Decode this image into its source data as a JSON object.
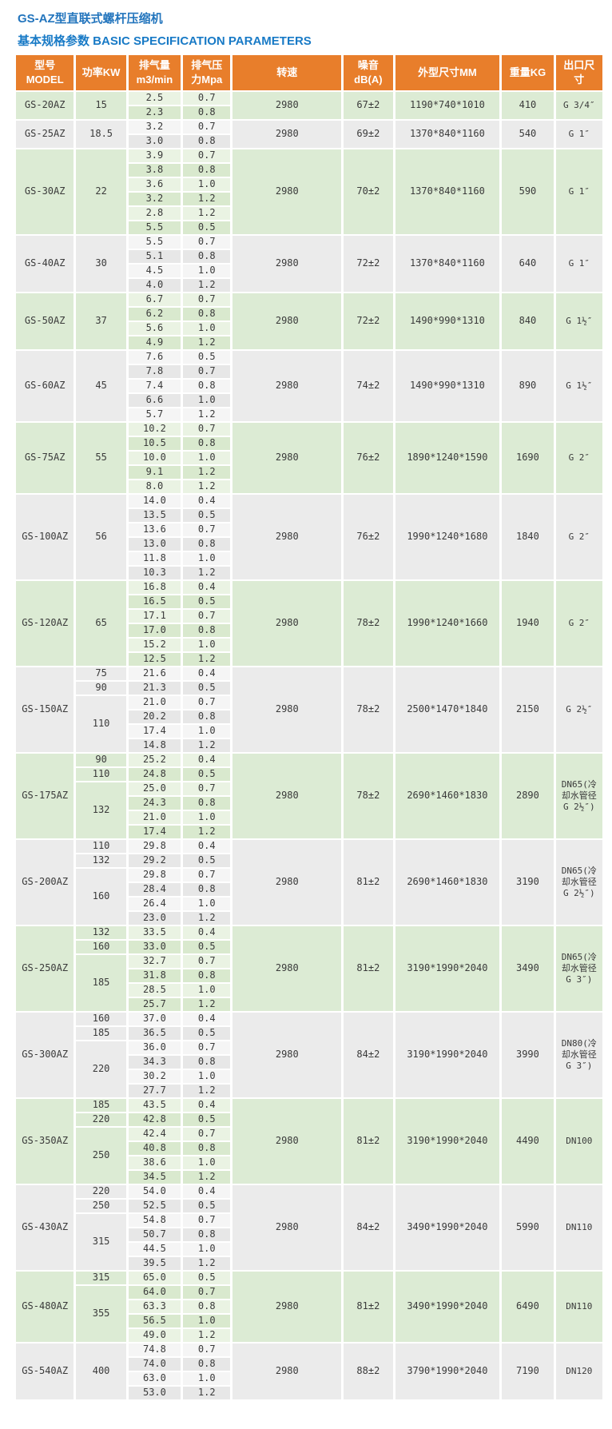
{
  "page": {
    "title": "GS-AZ型直联式螺杆压缩机",
    "subtitle": "基本规格参数 BASIC SPECIFICATION PARAMETERS"
  },
  "colors": {
    "header_bg": "#e87e2b",
    "header_text": "#ffffff",
    "title_text": "#2375bd",
    "subtitle_text": "#187ac6",
    "block_green": "#dcebd4",
    "block_green_light": "#eaf3e3",
    "block_green_dark": "#d9e9ce",
    "block_gray": "#ebebeb",
    "block_gray_light": "#f5f5f5",
    "block_gray_dark": "#e7e7e7",
    "cell_text": "#3a3a3a"
  },
  "table": {
    "headers": [
      {
        "key": "model",
        "lines": [
          "型号",
          "MODEL"
        ]
      },
      {
        "key": "power",
        "lines": [
          "功率KW"
        ]
      },
      {
        "key": "flow",
        "lines": [
          "排气量",
          "m3/min"
        ]
      },
      {
        "key": "pressure",
        "lines": [
          "排气压",
          "力Mpa"
        ]
      },
      {
        "key": "speed",
        "lines": [
          "转速"
        ]
      },
      {
        "key": "noise",
        "lines": [
          "噪音",
          "dB(A)"
        ]
      },
      {
        "key": "dimensions",
        "lines": [
          "外型尺寸MM"
        ]
      },
      {
        "key": "weight",
        "lines": [
          "重量KG"
        ]
      },
      {
        "key": "outlet",
        "lines": [
          "出口尺",
          "寸"
        ]
      }
    ],
    "blocks": [
      {
        "model": "GS-20AZ",
        "tone": "green",
        "power_groups": [
          {
            "power": "15",
            "rows": 2
          }
        ],
        "rows": [
          [
            "2.5",
            "0.7"
          ],
          [
            "2.3",
            "0.8"
          ]
        ],
        "speed": "2980",
        "noise": "67±2",
        "dimensions": "1190*740*1010",
        "weight": "410",
        "outlet": "G 3/4″"
      },
      {
        "model": "GS-25AZ",
        "tone": "gray",
        "power_groups": [
          {
            "power": "18.5",
            "rows": 2
          }
        ],
        "rows": [
          [
            "3.2",
            "0.7"
          ],
          [
            "3.0",
            "0.8"
          ]
        ],
        "speed": "2980",
        "noise": "69±2",
        "dimensions": "1370*840*1160",
        "weight": "540",
        "outlet": "G 1″"
      },
      {
        "model": "GS-30AZ",
        "tone": "green",
        "power_groups": [
          {
            "power": "22",
            "rows": 6
          }
        ],
        "rows": [
          [
            "3.9",
            "0.7"
          ],
          [
            "3.8",
            "0.8"
          ],
          [
            "3.6",
            "1.0"
          ],
          [
            "3.2",
            "1.2"
          ],
          [
            "2.8",
            "1.2"
          ],
          [
            "5.5",
            "0.5"
          ]
        ],
        "speed": "2980",
        "noise": "70±2",
        "dimensions": "1370*840*1160",
        "weight": "590",
        "outlet": "G 1″"
      },
      {
        "model": "GS-40AZ",
        "tone": "gray",
        "power_groups": [
          {
            "power": "30",
            "rows": 4
          }
        ],
        "rows": [
          [
            "5.5",
            "0.7"
          ],
          [
            "5.1",
            "0.8"
          ],
          [
            "4.5",
            "1.0"
          ],
          [
            "4.0",
            "1.2"
          ]
        ],
        "speed": "2980",
        "noise": "72±2",
        "dimensions": "1370*840*1160",
        "weight": "640",
        "outlet": "G 1″"
      },
      {
        "model": "GS-50AZ",
        "tone": "green",
        "power_groups": [
          {
            "power": "37",
            "rows": 4
          }
        ],
        "rows": [
          [
            "6.7",
            "0.7"
          ],
          [
            "6.2",
            "0.8"
          ],
          [
            "5.6",
            "1.0"
          ],
          [
            "4.9",
            "1.2"
          ]
        ],
        "speed": "2980",
        "noise": "72±2",
        "dimensions": "1490*990*1310",
        "weight": "840",
        "outlet": "G 1½″"
      },
      {
        "model": "GS-60AZ",
        "tone": "gray",
        "power_groups": [
          {
            "power": "45",
            "rows": 5
          }
        ],
        "rows": [
          [
            "7.6",
            "0.5"
          ],
          [
            "7.8",
            "0.7"
          ],
          [
            "7.4",
            "0.8"
          ],
          [
            "6.6",
            "1.0"
          ],
          [
            "5.7",
            "1.2"
          ]
        ],
        "speed": "2980",
        "noise": "74±2",
        "dimensions": "1490*990*1310",
        "weight": "890",
        "outlet": "G 1½″"
      },
      {
        "model": "GS-75AZ",
        "tone": "green",
        "power_groups": [
          {
            "power": "55",
            "rows": 5
          }
        ],
        "rows": [
          [
            "10.2",
            "0.7"
          ],
          [
            "10.5",
            "0.8"
          ],
          [
            "10.0",
            "1.0"
          ],
          [
            "9.1",
            "1.2"
          ],
          [
            "8.0",
            "1.2"
          ]
        ],
        "speed": "2980",
        "noise": "76±2",
        "dimensions": "1890*1240*1590",
        "weight": "1690",
        "outlet": "G 2″"
      },
      {
        "model": "GS-100AZ",
        "tone": "gray",
        "power_groups": [
          {
            "power": "56",
            "rows": 6
          }
        ],
        "rows": [
          [
            "14.0",
            "0.4"
          ],
          [
            "13.5",
            "0.5"
          ],
          [
            "13.6",
            "0.7"
          ],
          [
            "13.0",
            "0.8"
          ],
          [
            "11.8",
            "1.0"
          ],
          [
            "10.3",
            "1.2"
          ]
        ],
        "speed": "2980",
        "noise": "76±2",
        "dimensions": "1990*1240*1680",
        "weight": "1840",
        "outlet": "G 2″"
      },
      {
        "model": "GS-120AZ",
        "tone": "green",
        "power_groups": [
          {
            "power": "65",
            "rows": 6
          }
        ],
        "rows": [
          [
            "16.8",
            "0.4"
          ],
          [
            "16.5",
            "0.5"
          ],
          [
            "17.1",
            "0.7"
          ],
          [
            "17.0",
            "0.8"
          ],
          [
            "15.2",
            "1.0"
          ],
          [
            "12.5",
            "1.2"
          ]
        ],
        "speed": "2980",
        "noise": "78±2",
        "dimensions": "1990*1240*1660",
        "weight": "1940",
        "outlet": "G 2″"
      },
      {
        "model": "GS-150AZ",
        "tone": "gray",
        "power_groups": [
          {
            "power": "75",
            "rows": 1
          },
          {
            "power": "90",
            "rows": 1
          },
          {
            "power": "110",
            "rows": 4
          }
        ],
        "rows": [
          [
            "21.6",
            "0.4"
          ],
          [
            "21.3",
            "0.5"
          ],
          [
            "21.0",
            "0.7"
          ],
          [
            "20.2",
            "0.8"
          ],
          [
            "17.4",
            "1.0"
          ],
          [
            "14.8",
            "1.2"
          ]
        ],
        "speed": "2980",
        "noise": "78±2",
        "dimensions": "2500*1470*1840",
        "weight": "2150",
        "outlet": "G 2½″"
      },
      {
        "model": "GS-175AZ",
        "tone": "green",
        "power_groups": [
          {
            "power": "90",
            "rows": 1
          },
          {
            "power": "110",
            "rows": 1
          },
          {
            "power": "132",
            "rows": 4
          }
        ],
        "rows": [
          [
            "25.2",
            "0.4"
          ],
          [
            "24.8",
            "0.5"
          ],
          [
            "25.0",
            "0.7"
          ],
          [
            "24.3",
            "0.8"
          ],
          [
            "21.0",
            "1.0"
          ],
          [
            "17.4",
            "1.2"
          ]
        ],
        "speed": "2980",
        "noise": "78±2",
        "dimensions": "2690*1460*1830",
        "weight": "2890",
        "outlet": "DN65(冷却水管径 G 2½″)"
      },
      {
        "model": "GS-200AZ",
        "tone": "gray",
        "power_groups": [
          {
            "power": "110",
            "rows": 1
          },
          {
            "power": "132",
            "rows": 1
          },
          {
            "power": "160",
            "rows": 4
          }
        ],
        "rows": [
          [
            "29.8",
            "0.4"
          ],
          [
            "29.2",
            "0.5"
          ],
          [
            "29.8",
            "0.7"
          ],
          [
            "28.4",
            "0.8"
          ],
          [
            "26.4",
            "1.0"
          ],
          [
            "23.0",
            "1.2"
          ]
        ],
        "speed": "2980",
        "noise": "81±2",
        "dimensions": "2690*1460*1830",
        "weight": "3190",
        "outlet": "DN65(冷却水管径 G 2½″)"
      },
      {
        "model": "GS-250AZ",
        "tone": "green",
        "power_groups": [
          {
            "power": "132",
            "rows": 1
          },
          {
            "power": "160",
            "rows": 1
          },
          {
            "power": "185",
            "rows": 4
          }
        ],
        "rows": [
          [
            "33.5",
            "0.4"
          ],
          [
            "33.0",
            "0.5"
          ],
          [
            "32.7",
            "0.7"
          ],
          [
            "31.8",
            "0.8"
          ],
          [
            "28.5",
            "1.0"
          ],
          [
            "25.7",
            "1.2"
          ]
        ],
        "speed": "2980",
        "noise": "81±2",
        "dimensions": "3190*1990*2040",
        "weight": "3490",
        "outlet": "DN65(冷却水管径 G 3″)"
      },
      {
        "model": "GS-300AZ",
        "tone": "gray",
        "power_groups": [
          {
            "power": "160",
            "rows": 1
          },
          {
            "power": "185",
            "rows": 1
          },
          {
            "power": "220",
            "rows": 4
          }
        ],
        "rows": [
          [
            "37.0",
            "0.4"
          ],
          [
            "36.5",
            "0.5"
          ],
          [
            "36.0",
            "0.7"
          ],
          [
            "34.3",
            "0.8"
          ],
          [
            "30.2",
            "1.0"
          ],
          [
            "27.7",
            "1.2"
          ]
        ],
        "speed": "2980",
        "noise": "84±2",
        "dimensions": "3190*1990*2040",
        "weight": "3990",
        "outlet": "DN80(冷却水管径 G 3″)"
      },
      {
        "model": "GS-350AZ",
        "tone": "green",
        "power_groups": [
          {
            "power": "185",
            "rows": 1
          },
          {
            "power": "220",
            "rows": 1
          },
          {
            "power": "250",
            "rows": 4
          }
        ],
        "rows": [
          [
            "43.5",
            "0.4"
          ],
          [
            "42.8",
            "0.5"
          ],
          [
            "42.4",
            "0.7"
          ],
          [
            "40.8",
            "0.8"
          ],
          [
            "38.6",
            "1.0"
          ],
          [
            "34.5",
            "1.2"
          ]
        ],
        "speed": "2980",
        "noise": "81±2",
        "dimensions": "3190*1990*2040",
        "weight": "4490",
        "outlet": "DN100"
      },
      {
        "model": "GS-430AZ",
        "tone": "gray",
        "power_groups": [
          {
            "power": "220",
            "rows": 1
          },
          {
            "power": "250",
            "rows": 1
          },
          {
            "power": "315",
            "rows": 4
          }
        ],
        "rows": [
          [
            "54.0",
            "0.4"
          ],
          [
            "52.5",
            "0.5"
          ],
          [
            "54.8",
            "0.7"
          ],
          [
            "50.7",
            "0.8"
          ],
          [
            "44.5",
            "1.0"
          ],
          [
            "39.5",
            "1.2"
          ]
        ],
        "speed": "2980",
        "noise": "84±2",
        "dimensions": "3490*1990*2040",
        "weight": "5990",
        "outlet": "DN110"
      },
      {
        "model": "GS-480AZ",
        "tone": "green",
        "power_groups": [
          {
            "power": "315",
            "rows": 1
          },
          {
            "power": "355",
            "rows": 4
          }
        ],
        "rows": [
          [
            "65.0",
            "0.5"
          ],
          [
            "64.0",
            "0.7"
          ],
          [
            "63.3",
            "0.8"
          ],
          [
            "56.5",
            "1.0"
          ],
          [
            "49.0",
            "1.2"
          ]
        ],
        "speed": "2980",
        "noise": "81±2",
        "dimensions": "3490*1990*2040",
        "weight": "6490",
        "outlet": "DN110"
      },
      {
        "model": "GS-540AZ",
        "tone": "gray",
        "power_groups": [
          {
            "power": "400",
            "rows": 4
          }
        ],
        "rows": [
          [
            "74.8",
            "0.7"
          ],
          [
            "74.0",
            "0.8"
          ],
          [
            "63.0",
            "1.0"
          ],
          [
            "53.0",
            "1.2"
          ]
        ],
        "speed": "2980",
        "noise": "88±2",
        "dimensions": "3790*1990*2040",
        "weight": "7190",
        "outlet": "DN120"
      }
    ]
  }
}
